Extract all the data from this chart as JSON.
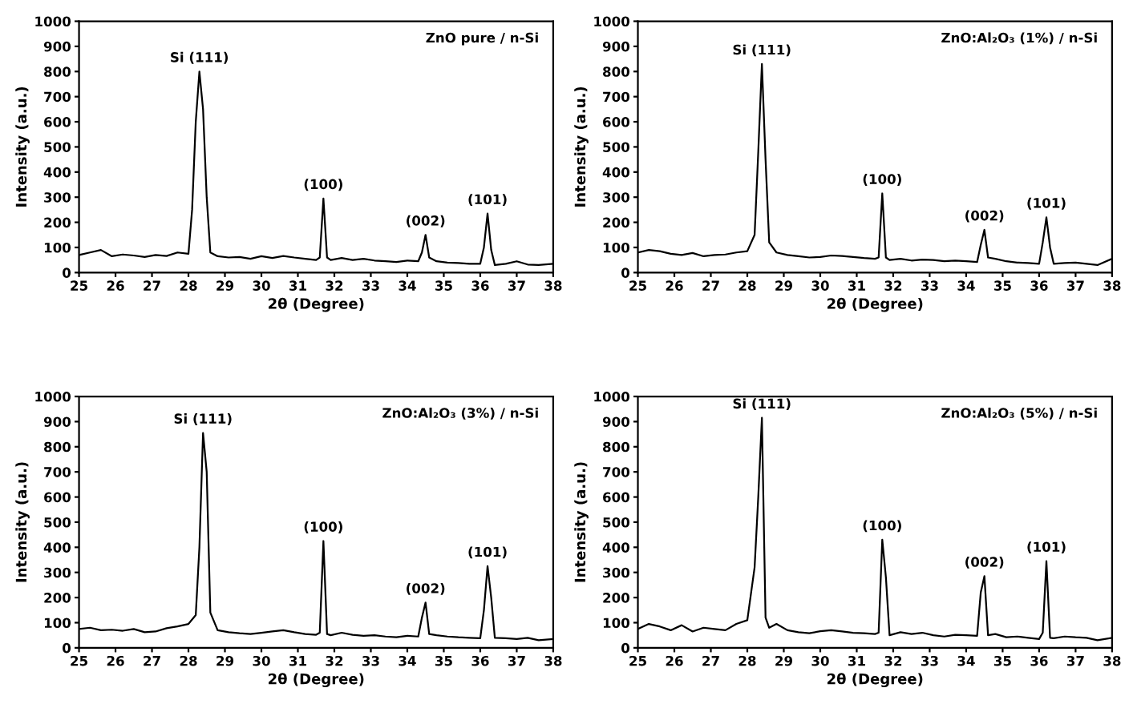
{
  "chart_data": [
    {
      "type": "line",
      "title": "ZnO pure / n-Si",
      "xlabel": "2θ (Degree)",
      "ylabel": "Intensity (a.u.)",
      "xlim": [
        25,
        38
      ],
      "ylim": [
        0,
        1000
      ],
      "xticks": [
        25,
        26,
        27,
        28,
        29,
        30,
        31,
        32,
        33,
        34,
        35,
        36,
        37,
        38
      ],
      "yticks": [
        0,
        100,
        200,
        300,
        400,
        500,
        600,
        700,
        800,
        900,
        1000
      ],
      "grid": false,
      "legend": false,
      "marker": "none",
      "line_style": "solid",
      "series": [
        {
          "color": "#000000",
          "x": [
            25,
            25.3,
            25.6,
            25.9,
            26.2,
            26.5,
            26.8,
            27.1,
            27.4,
            27.7,
            28.0,
            28.1,
            28.2,
            28.3,
            28.4,
            28.5,
            28.6,
            28.8,
            29.1,
            29.4,
            29.7,
            30.0,
            30.3,
            30.6,
            30.9,
            31.2,
            31.5,
            31.6,
            31.7,
            31.8,
            31.9,
            32.2,
            32.5,
            32.8,
            33.1,
            33.4,
            33.7,
            34.0,
            34.3,
            34.4,
            34.5,
            34.6,
            34.8,
            35.1,
            35.4,
            35.7,
            36.0,
            36.1,
            36.2,
            36.3,
            36.4,
            36.7,
            37.0,
            37.3,
            37.6,
            38.0
          ],
          "values": [
            70,
            80,
            90,
            65,
            72,
            68,
            62,
            70,
            66,
            80,
            75,
            250,
            600,
            800,
            650,
            300,
            80,
            65,
            60,
            62,
            55,
            65,
            58,
            66,
            60,
            55,
            50,
            60,
            295,
            60,
            50,
            58,
            50,
            55,
            48,
            45,
            42,
            48,
            45,
            80,
            150,
            60,
            45,
            40,
            38,
            35,
            35,
            100,
            235,
            90,
            30,
            35,
            45,
            32,
            30,
            35
          ]
        }
      ],
      "annotations": [
        {
          "text": "Si (111)",
          "x": 28.3,
          "y": 800
        },
        {
          "text": "(100)",
          "x": 31.7,
          "y": 295
        },
        {
          "text": "(002)",
          "x": 34.5,
          "y": 150
        },
        {
          "text": "(101)",
          "x": 36.2,
          "y": 235
        }
      ]
    },
    {
      "type": "line",
      "title": "ZnO:Al₂O₃ (1%) / n-Si",
      "xlabel": "2θ (Degree)",
      "ylabel": "Intensity (a.u.)",
      "xlim": [
        25,
        38
      ],
      "ylim": [
        0,
        1000
      ],
      "xticks": [
        25,
        26,
        27,
        28,
        29,
        30,
        31,
        32,
        33,
        34,
        35,
        36,
        37,
        38
      ],
      "yticks": [
        0,
        100,
        200,
        300,
        400,
        500,
        600,
        700,
        800,
        900,
        1000
      ],
      "grid": false,
      "legend": false,
      "marker": "none",
      "line_style": "solid",
      "series": [
        {
          "color": "#000000",
          "x": [
            25,
            25.3,
            25.6,
            25.9,
            26.2,
            26.5,
            26.8,
            27.1,
            27.4,
            27.7,
            28.0,
            28.2,
            28.3,
            28.4,
            28.5,
            28.6,
            28.8,
            29.1,
            29.4,
            29.7,
            30.0,
            30.3,
            30.6,
            30.9,
            31.2,
            31.5,
            31.6,
            31.7,
            31.8,
            31.9,
            32.2,
            32.5,
            32.8,
            33.1,
            33.4,
            33.7,
            34.0,
            34.3,
            34.4,
            34.5,
            34.6,
            34.8,
            35.1,
            35.4,
            35.7,
            36.0,
            36.1,
            36.2,
            36.3,
            36.4,
            36.7,
            37.0,
            37.3,
            37.6,
            38.0
          ],
          "values": [
            80,
            90,
            85,
            75,
            70,
            78,
            65,
            70,
            72,
            80,
            85,
            150,
            480,
            830,
            450,
            120,
            80,
            70,
            65,
            60,
            62,
            68,
            66,
            62,
            58,
            55,
            60,
            315,
            60,
            50,
            55,
            48,
            52,
            50,
            45,
            48,
            45,
            42,
            110,
            170,
            60,
            55,
            45,
            40,
            38,
            35,
            120,
            220,
            100,
            35,
            38,
            40,
            35,
            30,
            55
          ]
        }
      ],
      "annotations": [
        {
          "text": "Si (111)",
          "x": 28.4,
          "y": 830
        },
        {
          "text": "(100)",
          "x": 31.7,
          "y": 315
        },
        {
          "text": "(002)",
          "x": 34.5,
          "y": 170
        },
        {
          "text": "(101)",
          "x": 36.2,
          "y": 220
        }
      ]
    },
    {
      "type": "line",
      "title": "ZnO:Al₂O₃ (3%) / n-Si",
      "xlabel": "2θ (Degree)",
      "ylabel": "Intensity (a.u.)",
      "xlim": [
        25,
        38
      ],
      "ylim": [
        0,
        1000
      ],
      "xticks": [
        25,
        26,
        27,
        28,
        29,
        30,
        31,
        32,
        33,
        34,
        35,
        36,
        37,
        38
      ],
      "yticks": [
        0,
        100,
        200,
        300,
        400,
        500,
        600,
        700,
        800,
        900,
        1000
      ],
      "grid": false,
      "legend": false,
      "marker": "none",
      "line_style": "solid",
      "series": [
        {
          "color": "#000000",
          "x": [
            25,
            25.3,
            25.6,
            25.9,
            26.2,
            26.5,
            26.8,
            27.1,
            27.4,
            27.7,
            28.0,
            28.2,
            28.3,
            28.4,
            28.5,
            28.6,
            28.8,
            29.1,
            29.4,
            29.7,
            30.0,
            30.3,
            30.6,
            30.9,
            31.2,
            31.5,
            31.6,
            31.7,
            31.8,
            31.9,
            32.2,
            32.5,
            32.8,
            33.1,
            33.4,
            33.7,
            34.0,
            34.3,
            34.4,
            34.5,
            34.6,
            34.8,
            35.1,
            35.4,
            35.7,
            36.0,
            36.1,
            36.2,
            36.3,
            36.4,
            36.7,
            37.0,
            37.3,
            37.6,
            38.0
          ],
          "values": [
            75,
            80,
            70,
            72,
            68,
            75,
            62,
            65,
            78,
            85,
            95,
            130,
            400,
            855,
            700,
            140,
            70,
            62,
            58,
            55,
            60,
            65,
            70,
            62,
            55,
            52,
            60,
            425,
            55,
            50,
            60,
            52,
            48,
            50,
            45,
            42,
            48,
            45,
            120,
            180,
            55,
            50,
            45,
            42,
            40,
            38,
            150,
            325,
            200,
            40,
            38,
            35,
            40,
            30,
            35
          ]
        }
      ],
      "annotations": [
        {
          "text": "Si (111)",
          "x": 28.4,
          "y": 855
        },
        {
          "text": "(100)",
          "x": 31.7,
          "y": 425
        },
        {
          "text": "(002)",
          "x": 34.5,
          "y": 180
        },
        {
          "text": "(101)",
          "x": 36.2,
          "y": 325
        }
      ]
    },
    {
      "type": "line",
      "title": "ZnO:Al₂O₃ (5%) / n-Si",
      "xlabel": "2θ (Degree)",
      "ylabel": "Intensity (a.u.)",
      "xlim": [
        25,
        38
      ],
      "ylim": [
        0,
        1000
      ],
      "xticks": [
        25,
        26,
        27,
        28,
        29,
        30,
        31,
        32,
        33,
        34,
        35,
        36,
        37,
        38
      ],
      "yticks": [
        0,
        100,
        200,
        300,
        400,
        500,
        600,
        700,
        800,
        900,
        1000
      ],
      "grid": false,
      "legend": false,
      "marker": "none",
      "line_style": "solid",
      "series": [
        {
          "color": "#000000",
          "x": [
            25,
            25.3,
            25.6,
            25.9,
            26.2,
            26.5,
            26.8,
            27.1,
            27.4,
            27.7,
            28.0,
            28.2,
            28.3,
            28.4,
            28.5,
            28.6,
            28.8,
            29.1,
            29.4,
            29.7,
            30.0,
            30.3,
            30.6,
            30.9,
            31.2,
            31.5,
            31.6,
            31.7,
            31.8,
            31.9,
            32.2,
            32.5,
            32.8,
            33.1,
            33.4,
            33.7,
            34.0,
            34.3,
            34.4,
            34.5,
            34.6,
            34.8,
            35.1,
            35.4,
            35.7,
            36.0,
            36.1,
            36.2,
            36.3,
            36.4,
            36.7,
            37.0,
            37.3,
            37.6,
            38.0
          ],
          "values": [
            75,
            95,
            85,
            70,
            90,
            65,
            80,
            75,
            70,
            95,
            110,
            320,
            600,
            915,
            120,
            80,
            95,
            70,
            62,
            58,
            66,
            70,
            65,
            60,
            58,
            55,
            60,
            430,
            280,
            50,
            62,
            55,
            60,
            50,
            45,
            52,
            50,
            48,
            220,
            285,
            50,
            55,
            42,
            45,
            40,
            35,
            60,
            345,
            40,
            38,
            45,
            42,
            40,
            30,
            40
          ]
        }
      ],
      "annotations": [
        {
          "text": "Si (111)",
          "x": 28.4,
          "y": 915
        },
        {
          "text": "(100)",
          "x": 31.7,
          "y": 430
        },
        {
          "text": "(002)",
          "x": 34.5,
          "y": 285
        },
        {
          "text": "(101)",
          "x": 36.2,
          "y": 345
        }
      ]
    }
  ]
}
